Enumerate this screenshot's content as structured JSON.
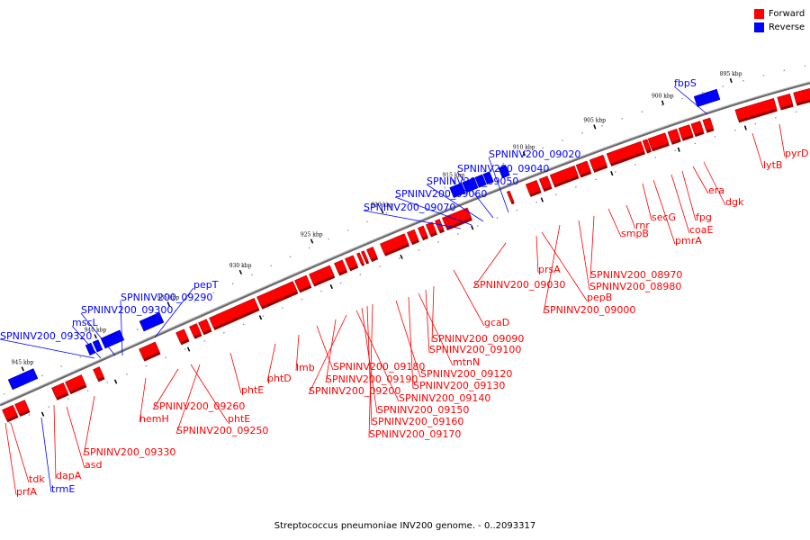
{
  "legend": {
    "forward_label": "Forward",
    "reverse_label": "Reverse",
    "forward_color": "#ff0000",
    "reverse_color": "#0000ff"
  },
  "caption": "Streptococcus pneumoniae INV200 genome. - 0..2093317",
  "ticks": [
    "945 kbp",
    "940 kbp",
    "935 kbp",
    "930 kbp",
    "925 kbp",
    "920 kbp",
    "915 kbp",
    "910 kbp",
    "905 kbp",
    "900 kbp",
    "895 kbp"
  ],
  "reverse_labels": [
    "SPNINV200_09320",
    "mscL",
    "SPNINV200_09300",
    "SPNINV200_09290",
    "pepT",
    "SPNINV200_09070",
    "SPNINV200_09060",
    "SPNINV200_09050",
    "SPNINV200_09040",
    "SPNINV200_09020",
    "fbpS",
    "trmE"
  ],
  "forward_labels": [
    "prfA",
    "tdk",
    "dapA",
    "asd",
    "SPNINV200_09330",
    "hemH",
    "SPNINV200_09260",
    "phtE",
    "SPNINV200_09250",
    "phtE",
    "phtD",
    "lmb",
    "SPNINV200_09180",
    "SPNINV200_09190",
    "SPNINV200_09200",
    "SPNINV200_09140",
    "SPNINV200_09150",
    "SPNINV200_09160",
    "SPNINV200_09170",
    "SPNINV200_09120",
    "SPNINV200_09130",
    "mtnN",
    "SPNINV200_09100",
    "SPNINV200_09090",
    "gcaD",
    "SPNINV200_09030",
    "prsA",
    "pepB",
    "SPNINV200_09000",
    "SPNINV200_08980",
    "SPNINV200_08970",
    "smpB",
    "rnr",
    "secG",
    "pmrA",
    "coaE",
    "fpg",
    "era",
    "dgk",
    "lytB",
    "pyrD"
  ]
}
